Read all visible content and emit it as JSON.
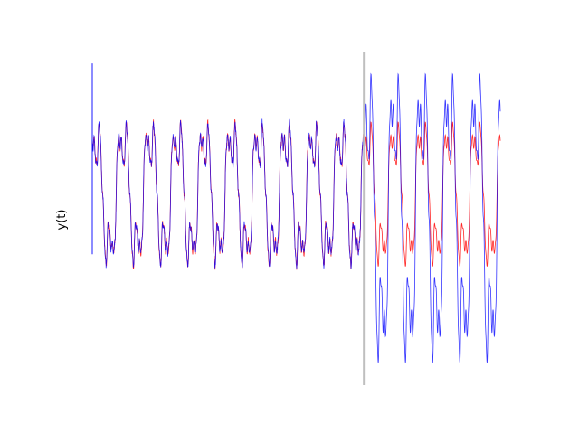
{
  "chart_data": {
    "type": "line",
    "title": "",
    "xlabel": "",
    "ylabel": "y(t)",
    "grid": false,
    "legend": "none",
    "axis_ticks": false,
    "xlim": [
      0,
      15
    ],
    "ylim": [
      -1.75,
      1.3
    ],
    "split_x": 10,
    "split_line_color": "#bfbfbf",
    "start_spike": {
      "x": 0,
      "y_min": -0.55,
      "y_max": 1.2,
      "color": "#0000ff"
    },
    "series": [
      {
        "color": "#ff0000",
        "segments": [
          {
            "x_start": 0,
            "x_end": 10,
            "cycles": 10,
            "phase": 0.12,
            "amplitude": 1.0,
            "offset": 0.0,
            "noise": 0.03
          },
          {
            "x_start": 10,
            "x_end": 15,
            "cycles": 5,
            "phase": 0.12,
            "amplitude": 1.0,
            "offset": 0.0,
            "noise": 0.0
          }
        ]
      },
      {
        "color": "#0000ff",
        "segments": [
          {
            "x_start": 0,
            "x_end": 10,
            "cycles": 10,
            "phase": 0.12,
            "amplitude": 1.0,
            "offset": 0.0,
            "noise": 0.03
          },
          {
            "x_start": 10,
            "x_end": 15,
            "cycles": 5,
            "phase": 0.12,
            "amplitude": 2.0,
            "offset": -0.22,
            "noise": 0.0
          }
        ]
      }
    ]
  }
}
